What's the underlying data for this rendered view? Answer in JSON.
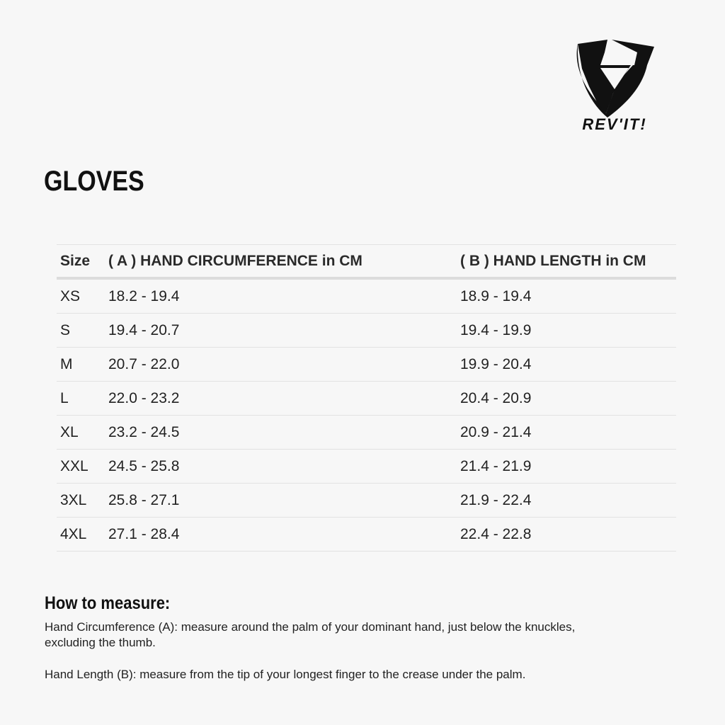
{
  "brand": {
    "logo_text": "REV'IT!",
    "logo_color": "#111111"
  },
  "title": "GLOVES",
  "table": {
    "headers": [
      "Size",
      "( A ) HAND CIRCUMFERENCE in CM",
      "( B ) HAND LENGTH in CM"
    ],
    "rows": [
      [
        "XS",
        "18.2 - 19.4",
        "18.9 - 19.4"
      ],
      [
        "S",
        "19.4 - 20.7",
        "19.4 - 19.9"
      ],
      [
        "M",
        "20.7 - 22.0",
        "19.9 - 20.4"
      ],
      [
        "L",
        "22.0 - 23.2",
        "20.4 - 20.9"
      ],
      [
        "XL",
        "23.2 - 24.5",
        "20.9 - 21.4"
      ],
      [
        "XXL",
        "24.5 - 25.8",
        "21.4 - 21.9"
      ],
      [
        "3XL",
        "25.8 - 27.1",
        "21.9 - 22.4"
      ],
      [
        "4XL",
        "27.1 - 28.4",
        "22.4 - 22.8"
      ]
    ]
  },
  "how_to": {
    "heading": "How to measure:",
    "circumference": "Hand Circumference (A): measure around the palm of your dominant hand, just below the knuckles, excluding the thumb.",
    "length": "Hand Length (B): measure from the tip of your longest finger to the crease under the palm."
  }
}
